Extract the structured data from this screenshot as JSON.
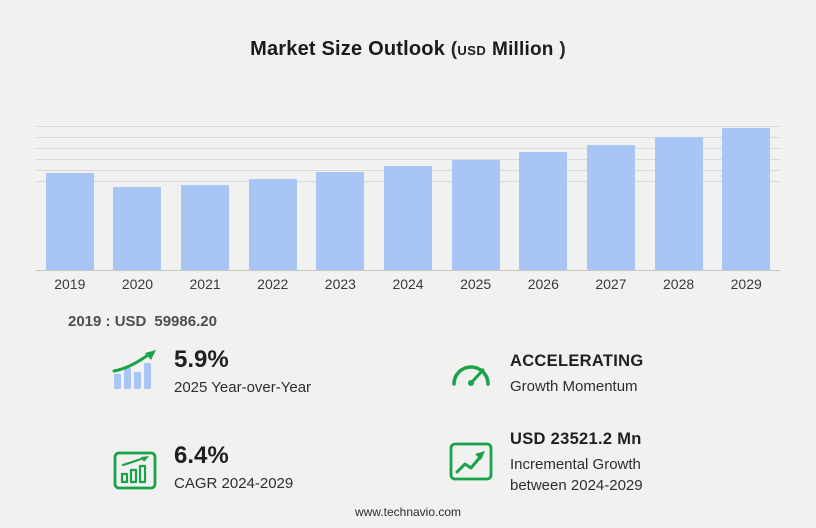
{
  "title": {
    "main": "Market Size Outlook",
    "paren_open": "(",
    "currency": "USD",
    "unit": "Million",
    "paren_close": ")"
  },
  "chart_data": {
    "type": "bar",
    "title": "Market Size Outlook (USD Million)",
    "unit": "USD Million",
    "categories": [
      "2019",
      "2020",
      "2021",
      "2022",
      "2023",
      "2024",
      "2025",
      "2026",
      "2027",
      "2028",
      "2029"
    ],
    "values": [
      59986.2,
      51500,
      52600,
      56500,
      61000,
      64640,
      68450,
      72950,
      77700,
      82750,
      88160
    ],
    "xlabel": "",
    "ylabel": "",
    "ylim": [
      0,
      93000
    ],
    "gridlines": true,
    "legend": false,
    "bar_color": "#a8c5f6"
  },
  "annotation": {
    "label": "2019 : USD",
    "value": "59986.20"
  },
  "stats": [
    {
      "icon": "yoy-growth-icon",
      "value": "5.9%",
      "label": "2025 Year-over-Year"
    },
    {
      "icon": "speedometer-icon",
      "value": "ACCELERATING",
      "label": "Growth Momentum"
    },
    {
      "icon": "cagr-chart-icon",
      "value": "6.4%",
      "label": "CAGR 2024-2029"
    },
    {
      "icon": "incremental-growth-icon",
      "value": "USD 23521.2 Mn",
      "label": "Incremental Growth between 2024-2029"
    }
  ],
  "footer": {
    "website": "www.technavio.com"
  },
  "colors": {
    "accent_green": "#1aa24b",
    "bar_blue": "#a8c5f6",
    "background": "#f1f1ef"
  }
}
